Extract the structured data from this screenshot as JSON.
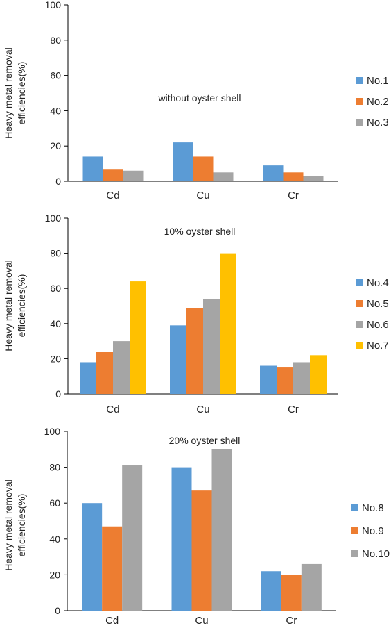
{
  "colors": {
    "blue": "#5B9BD5",
    "orange": "#ED7D31",
    "gray": "#A5A5A5",
    "yellow": "#FFC000"
  },
  "chart_data": [
    {
      "type": "bar",
      "annotation": "without oyster shell",
      "ylabel_line1": "Heavy metal removal",
      "ylabel_line2": "efficiencies(%)",
      "categories": [
        "Cd",
        "Cu",
        "Cr"
      ],
      "ylim": [
        0,
        100
      ],
      "yticks": [
        0,
        20,
        40,
        60,
        80,
        100
      ],
      "legend_position": "right",
      "series": [
        {
          "name": "No.1",
          "color": "#5B9BD5",
          "values": [
            14,
            22,
            9
          ]
        },
        {
          "name": "No.2",
          "color": "#ED7D31",
          "values": [
            7,
            14,
            5
          ]
        },
        {
          "name": "No.3",
          "color": "#A5A5A5",
          "values": [
            6,
            5,
            3
          ]
        }
      ]
    },
    {
      "type": "bar",
      "annotation": "10% oyster shell",
      "ylabel_line1": "Heavy metal removal",
      "ylabel_line2": "efficiencies(%)",
      "categories": [
        "Cd",
        "Cu",
        "Cr"
      ],
      "ylim": [
        0,
        100
      ],
      "yticks": [
        0,
        20,
        40,
        60,
        80,
        100
      ],
      "legend_position": "right",
      "series": [
        {
          "name": "No.4",
          "color": "#5B9BD5",
          "values": [
            18,
            39,
            16
          ]
        },
        {
          "name": "No.5",
          "color": "#ED7D31",
          "values": [
            24,
            49,
            15
          ]
        },
        {
          "name": "No.6",
          "color": "#A5A5A5",
          "values": [
            30,
            54,
            18
          ]
        },
        {
          "name": "No.7",
          "color": "#FFC000",
          "values": [
            64,
            80,
            22
          ]
        }
      ]
    },
    {
      "type": "bar",
      "annotation": "20% oyster shell",
      "ylabel_line1": "Heavy metal removal",
      "ylabel_line2": "efficiencies(%)",
      "categories": [
        "Cd",
        "Cu",
        "Cr"
      ],
      "ylim": [
        0,
        100
      ],
      "yticks": [
        0,
        20,
        40,
        60,
        80,
        100
      ],
      "legend_position": "right",
      "series": [
        {
          "name": "No.8",
          "color": "#5B9BD5",
          "values": [
            60,
            80,
            22
          ]
        },
        {
          "name": "No.9",
          "color": "#ED7D31",
          "values": [
            47,
            67,
            20
          ]
        },
        {
          "name": "No.10",
          "color": "#A5A5A5",
          "values": [
            81,
            90,
            26
          ]
        }
      ]
    }
  ]
}
